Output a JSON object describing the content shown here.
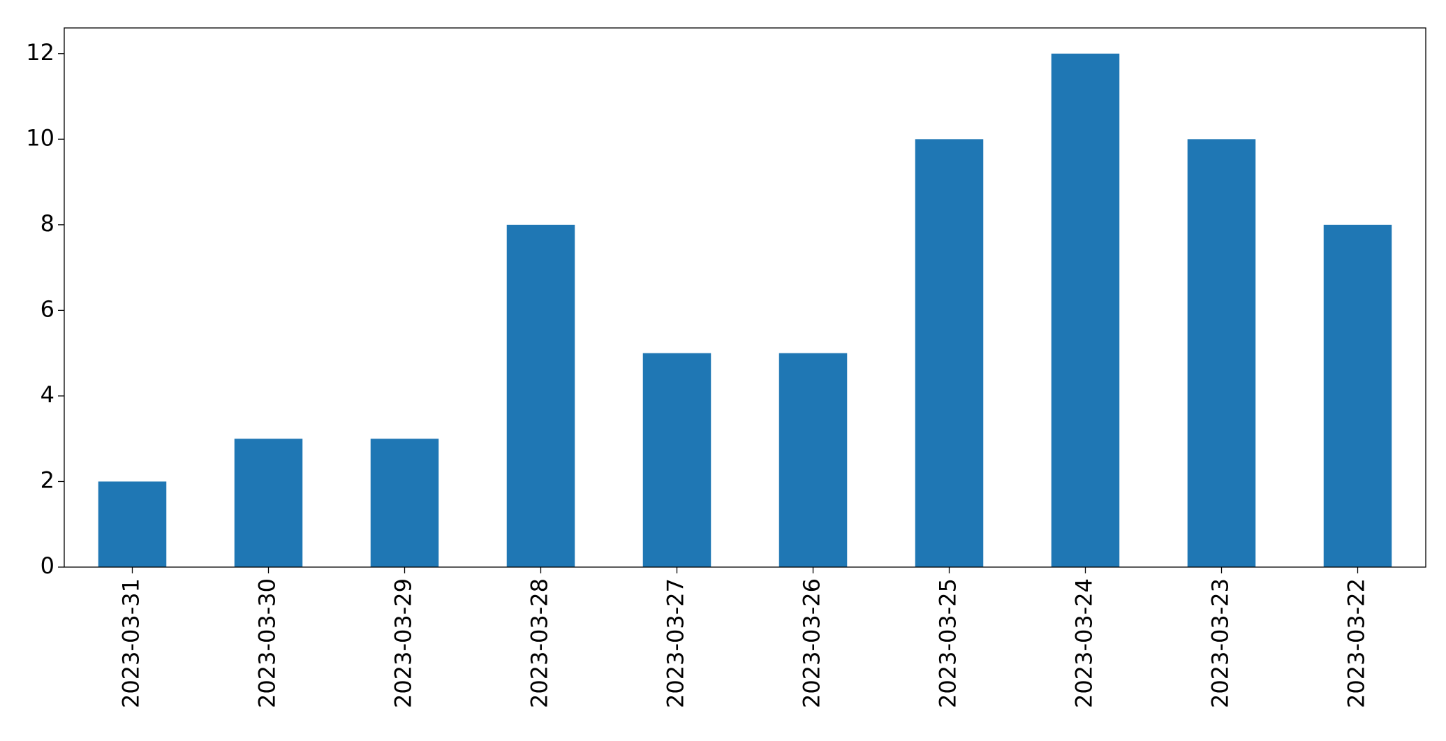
{
  "chart_data": {
    "type": "bar",
    "categories": [
      "2023-03-31",
      "2023-03-30",
      "2023-03-29",
      "2023-03-28",
      "2023-03-27",
      "2023-03-26",
      "2023-03-25",
      "2023-03-24",
      "2023-03-23",
      "2023-03-22"
    ],
    "values": [
      2,
      3,
      3,
      8,
      5,
      5,
      10,
      12,
      10,
      8
    ],
    "color": "#1f77b4",
    "ylim": [
      0,
      12.6
    ],
    "yticks": [
      0,
      2,
      4,
      6,
      8,
      10,
      12
    ],
    "grid": false
  }
}
